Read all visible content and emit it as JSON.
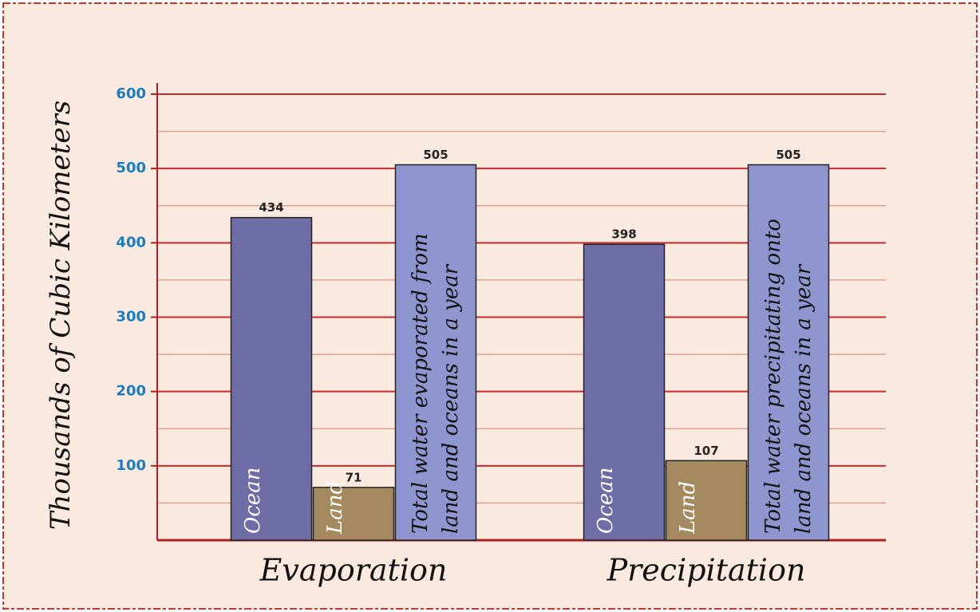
{
  "chart_data": {
    "type": "bar",
    "y_label": "Thousands of Cubic Kilometers",
    "categories": [
      "Evaporation",
      "Precipitation"
    ],
    "series": [
      {
        "name": "Ocean",
        "color": "#6e6da6",
        "values": [
          434,
          398
        ]
      },
      {
        "name": "Land",
        "color": "#a48a5e",
        "values": [
          71,
          107
        ]
      },
      {
        "labels": [
          [
            "Total water evaporated from",
            "land and oceans in a year"
          ],
          [
            "Total water precipitating onto",
            "land and oceans in a year"
          ]
        ],
        "color": "#8f96cf",
        "values": [
          505,
          505
        ]
      }
    ],
    "ylim": [
      0,
      600
    ],
    "yticks": [
      100,
      200,
      300,
      400,
      500,
      600
    ],
    "minor_yticks": [
      50,
      150,
      250,
      350,
      450,
      550
    ],
    "grid": true
  }
}
